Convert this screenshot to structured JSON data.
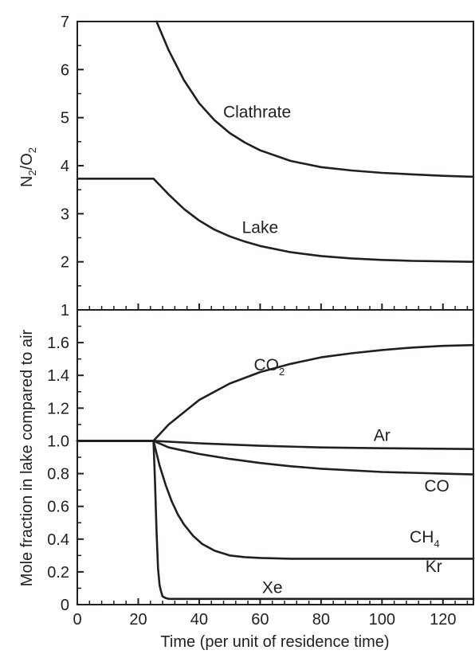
{
  "chart_data": [
    {
      "type": "line",
      "panel": "top",
      "xlabel": "",
      "ylabel": {
        "prefix": "N",
        "sub1": "2",
        "mid": "/O",
        "sub2": "2"
      },
      "xlim": [
        0,
        130
      ],
      "ylim": [
        1,
        7
      ],
      "yticks": [
        "1",
        "2",
        "3",
        "4",
        "5",
        "6",
        "7"
      ],
      "grid": false,
      "series": [
        {
          "name": "Clathrate",
          "x": [
            26,
            30,
            35,
            40,
            45,
            50,
            55,
            60,
            70,
            80,
            90,
            100,
            110,
            120,
            130
          ],
          "y": [
            7.0,
            6.4,
            5.78,
            5.3,
            4.95,
            4.68,
            4.48,
            4.32,
            4.1,
            3.97,
            3.9,
            3.85,
            3.82,
            3.79,
            3.77
          ]
        },
        {
          "name": "Lake",
          "x": [
            0,
            25,
            27,
            30,
            35,
            40,
            45,
            50,
            55,
            60,
            70,
            80,
            90,
            100,
            110,
            120,
            130
          ],
          "y": [
            3.73,
            3.73,
            3.6,
            3.4,
            3.1,
            2.86,
            2.67,
            2.53,
            2.42,
            2.33,
            2.2,
            2.12,
            2.07,
            2.04,
            2.02,
            2.01,
            2.0
          ]
        }
      ],
      "labels": [
        {
          "text": "Clathrate",
          "x": 59,
          "y": 5.0
        },
        {
          "text": "Lake",
          "x": 60,
          "y": 2.6
        }
      ]
    },
    {
      "type": "line",
      "panel": "bottom",
      "xlabel": "Time (per unit of residence time)",
      "ylabel": "Mole fraction in lake compared to air",
      "xlim": [
        0,
        130
      ],
      "ylim": [
        0,
        1.8
      ],
      "xticks": [
        "0",
        "20",
        "40",
        "60",
        "80",
        "100",
        "120"
      ],
      "yticks": [
        "0",
        "0.2",
        "0.4",
        "0.6",
        "0.8",
        "1.0",
        "1.2",
        "1.4",
        "1.6"
      ],
      "grid": false,
      "series": [
        {
          "name": "CO2",
          "x": [
            0,
            25,
            30,
            40,
            50,
            60,
            70,
            80,
            90,
            100,
            110,
            120,
            130
          ],
          "y": [
            1.0,
            1.0,
            1.1,
            1.25,
            1.35,
            1.42,
            1.47,
            1.51,
            1.535,
            1.555,
            1.57,
            1.58,
            1.585
          ]
        },
        {
          "name": "Ar",
          "x": [
            0,
            25,
            40,
            60,
            80,
            100,
            130
          ],
          "y": [
            1.0,
            1.0,
            0.985,
            0.97,
            0.96,
            0.955,
            0.95
          ]
        },
        {
          "name": "CO",
          "x": [
            0,
            25,
            30,
            40,
            50,
            60,
            70,
            80,
            90,
            100,
            110,
            120,
            130
          ],
          "y": [
            1.0,
            1.0,
            0.96,
            0.92,
            0.89,
            0.865,
            0.845,
            0.83,
            0.82,
            0.81,
            0.805,
            0.8,
            0.795
          ]
        },
        {
          "name": "CH4 / Kr",
          "x": [
            0,
            25,
            27,
            29,
            31,
            33,
            35,
            38,
            41,
            45,
            50,
            55,
            60,
            70,
            80,
            100,
            130
          ],
          "y": [
            1.0,
            1.0,
            0.85,
            0.73,
            0.63,
            0.55,
            0.49,
            0.42,
            0.37,
            0.33,
            0.3,
            0.29,
            0.285,
            0.28,
            0.28,
            0.28,
            0.28
          ]
        },
        {
          "name": "Xe",
          "x": [
            0,
            25,
            25.5,
            26,
            26.5,
            27,
            27.5,
            28,
            29,
            30,
            40,
            60,
            80,
            100,
            130
          ],
          "y": [
            1.0,
            1.0,
            0.75,
            0.45,
            0.22,
            0.12,
            0.08,
            0.05,
            0.04,
            0.035,
            0.035,
            0.035,
            0.035,
            0.035,
            0.035
          ]
        }
      ],
      "labels": [
        {
          "text": "CO",
          "sub": "2",
          "x": 63,
          "y": 1.43
        },
        {
          "text": "Ar",
          "x": 100,
          "y": 1.0
        },
        {
          "text": "CO",
          "x": 118,
          "y": 0.69
        },
        {
          "text": "CH",
          "sub": "4",
          "x": 114,
          "y": 0.38
        },
        {
          "text": "Kr",
          "x": 117,
          "y": 0.2
        },
        {
          "text": "Xe",
          "x": 64,
          "y": 0.07
        }
      ]
    }
  ]
}
